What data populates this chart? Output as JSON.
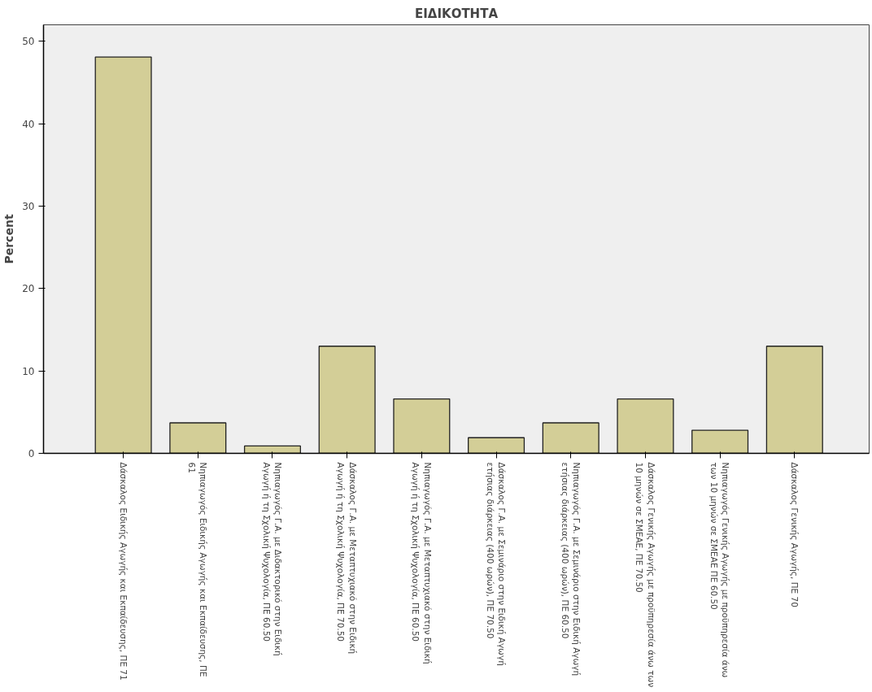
{
  "chart_data": {
    "type": "bar",
    "title": "ΕΙΔΙΚΟΤΗΤΑ",
    "ylabel": "Percent",
    "categories": [
      "Δάσκαλος Ειδικής Αγωγής και Εκπαίδευσης, ΠΕ 71",
      "Νηπιαγωγός Ειδικής Αγωγής και Εκπαίδευσης, ΠΕ 61",
      "Νηπιαγωγός Γ.Α. με Διδακτορικό στην Ειδική Αγωγή ή τη Σχολική Ψυχολογία, ΠΕ 60.50",
      "Δάσκαλος Γ.Α. με Μεταπτυχιακό στην Ειδική Αγωγή ή τη Σχολική Ψυχολογία, ΠΕ 70.50",
      "Νηπιαγωγός Γ.Α. με Μεταπτυχιακό στην Ειδική Αγωγή ή τη Σχολική Ψυχολογία, ΠΕ 60.50",
      "Δάσκαλος Γ.Α. με Σεμινάριο στην Ειδική Αγωγή ετήσιας διάρκειας (400 ωρών), ΠΕ 70.50",
      "Νηπιαγωγός Γ.Α. με Σεμινάριο στην Ειδική Αγωγή ετήσιας διάρκειας (400 ωρών), ΠΕ 60.50",
      "Δάσκαλος Γενικής Αγωγής με προϋπηρεσία άνω των 10 μηνών σε ΣΜΕΑΕ, ΠΕ 70.50",
      "Νηπιαγωγός Γενικής Αγωγής με προϋπηρεσία άνω των 10 μηνών σε ΣΜΕΑΕ ΠΕ 60.50",
      "Δάσκαλος Γενικής Αγωγής, ΠΕ 70"
    ],
    "values": [
      48.1,
      3.7,
      0.9,
      13.0,
      6.6,
      1.9,
      3.7,
      6.6,
      2.8,
      13.0
    ],
    "color": "#d3ce97",
    "ylim": [
      0,
      52
    ],
    "yticks": [
      0,
      10,
      20,
      30,
      40,
      50
    ],
    "grid": false
  }
}
